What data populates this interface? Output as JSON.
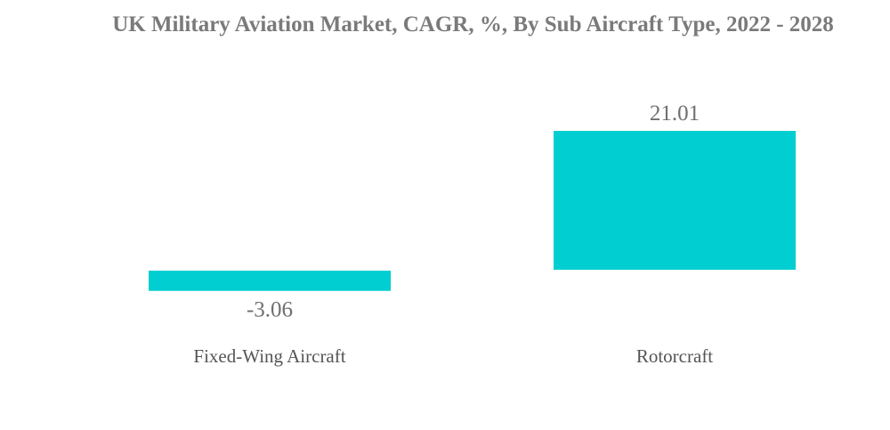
{
  "chart_data": {
    "type": "bar",
    "title": "UK Military Aviation Market, CAGR, %, By Sub Aircraft Type, 2022 - 2028",
    "categories": [
      "Fixed-Wing Aircraft",
      "Rotorcraft"
    ],
    "values": [
      -3.06,
      21.01
    ],
    "value_labels": [
      "-3.06",
      "21.01"
    ],
    "xlabel": "",
    "ylabel": "",
    "grid": false,
    "legend": "none",
    "colors": {
      "bar": "#00CED1",
      "title": "#7a7a7a",
      "value_label": "#6f6f6f",
      "category_label": "#555555"
    }
  }
}
